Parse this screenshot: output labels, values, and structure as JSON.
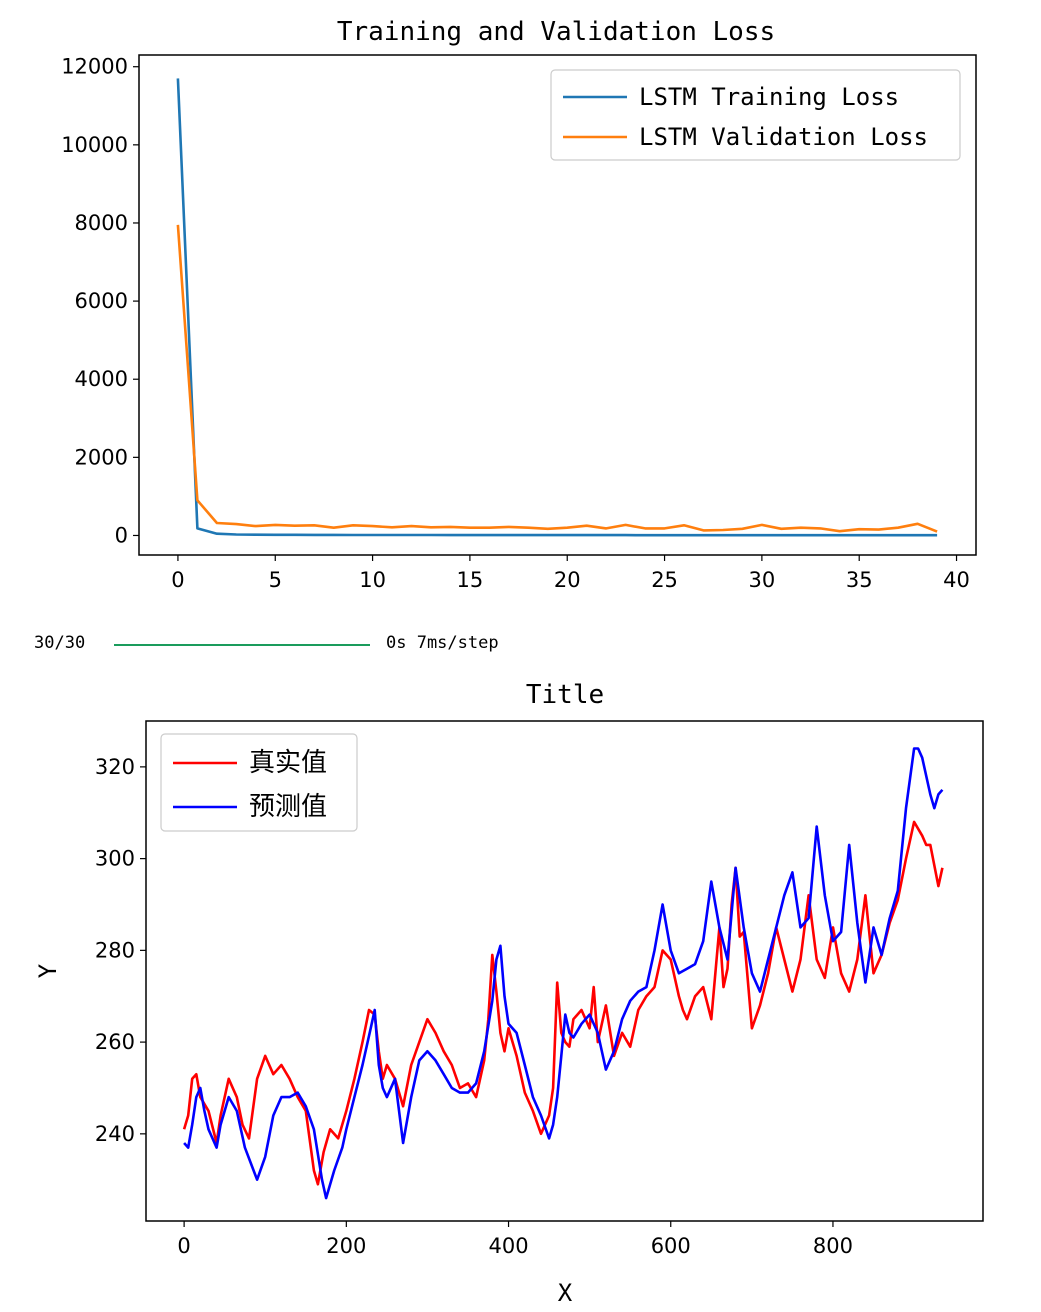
{
  "progress": {
    "count": "30/30",
    "fraction": 1.0,
    "color": "#1a9c5c",
    "info": "0s 7ms/step"
  },
  "chart_data": [
    {
      "type": "line",
      "title": "Training and Validation Loss",
      "xlabel": "",
      "ylabel": "",
      "xlim": [
        -2,
        41
      ],
      "ylim": [
        -500,
        12300
      ],
      "x_ticks": [
        0,
        5,
        10,
        15,
        20,
        25,
        30,
        35,
        40
      ],
      "y_ticks": [
        0,
        2000,
        4000,
        6000,
        8000,
        10000,
        12000
      ],
      "legend_position": "top-right",
      "grid": false,
      "series": [
        {
          "name": "LSTM Training Loss",
          "color": "#1f77b4",
          "x": [
            0,
            1,
            2,
            3,
            4,
            5,
            6,
            7,
            8,
            9,
            10,
            11,
            12,
            13,
            14,
            15,
            16,
            17,
            18,
            19,
            20,
            21,
            22,
            23,
            24,
            25,
            26,
            27,
            28,
            29,
            30,
            31,
            32,
            33,
            34,
            35,
            36,
            37,
            38,
            39
          ],
          "values": [
            11700,
            180,
            45,
            25,
            20,
            18,
            16,
            15,
            14,
            13,
            12,
            12,
            11,
            11,
            10,
            10,
            10,
            10,
            9,
            9,
            9,
            9,
            9,
            9,
            8,
            8,
            8,
            8,
            8,
            8,
            8,
            8,
            8,
            8,
            8,
            8,
            8,
            8,
            8,
            8
          ]
        },
        {
          "name": "LSTM Validation Loss",
          "color": "#ff7f0e",
          "x": [
            0,
            1,
            2,
            3,
            4,
            5,
            6,
            7,
            8,
            9,
            10,
            11,
            12,
            13,
            14,
            15,
            16,
            17,
            18,
            19,
            20,
            21,
            22,
            23,
            24,
            25,
            26,
            27,
            28,
            29,
            30,
            31,
            32,
            33,
            34,
            35,
            36,
            37,
            38,
            39
          ],
          "values": [
            7950,
            900,
            320,
            290,
            240,
            270,
            250,
            260,
            200,
            260,
            240,
            210,
            240,
            210,
            220,
            200,
            200,
            220,
            200,
            170,
            200,
            250,
            180,
            270,
            180,
            180,
            260,
            130,
            140,
            170,
            270,
            170,
            200,
            180,
            110,
            160,
            150,
            200,
            300,
            100
          ]
        }
      ]
    },
    {
      "type": "line",
      "title": "Title",
      "xlabel": "X",
      "ylabel": "Y",
      "xlim": [
        -47,
        985
      ],
      "ylim": [
        221,
        330
      ],
      "x_ticks": [
        0,
        200,
        400,
        600,
        800
      ],
      "y_ticks": [
        240,
        260,
        280,
        300,
        320
      ],
      "legend_position": "top-left",
      "grid": false,
      "series": [
        {
          "name": "真实值",
          "color": "#ff0000",
          "x": [
            0,
            5,
            10,
            15,
            20,
            30,
            40,
            45,
            55,
            65,
            72,
            80,
            90,
            100,
            110,
            120,
            130,
            140,
            150,
            160,
            165,
            172,
            180,
            190,
            200,
            210,
            220,
            228,
            235,
            240,
            245,
            250,
            260,
            270,
            280,
            290,
            300,
            310,
            320,
            330,
            340,
            350,
            360,
            370,
            375,
            380,
            385,
            390,
            395,
            400,
            410,
            420,
            430,
            440,
            450,
            455,
            460,
            465,
            470,
            475,
            480,
            490,
            500,
            505,
            510,
            520,
            530,
            540,
            550,
            560,
            570,
            580,
            590,
            600,
            610,
            615,
            620,
            630,
            640,
            650,
            660,
            665,
            670,
            675,
            680,
            685,
            690,
            700,
            710,
            720,
            730,
            740,
            750,
            760,
            770,
            780,
            790,
            800,
            810,
            820,
            830,
            840,
            850,
            860,
            870,
            880,
            890,
            900,
            910,
            915,
            920,
            930,
            935
          ],
          "values": [
            241,
            244,
            252,
            253,
            248,
            245,
            238,
            244,
            252,
            248,
            242,
            239,
            252,
            257,
            253,
            255,
            252,
            248,
            245,
            232,
            229,
            236,
            241,
            239,
            245,
            252,
            260,
            267,
            266,
            258,
            252,
            255,
            252,
            246,
            255,
            260,
            265,
            262,
            258,
            255,
            250,
            251,
            248,
            256,
            265,
            279,
            271,
            262,
            258,
            263,
            257,
            249,
            245,
            240,
            244,
            250,
            273,
            262,
            260,
            259,
            265,
            267,
            263,
            272,
            260,
            268,
            257,
            262,
            259,
            267,
            270,
            272,
            280,
            278,
            270,
            267,
            265,
            270,
            272,
            265,
            285,
            272,
            276,
            290,
            298,
            283,
            284,
            263,
            268,
            275,
            285,
            278,
            271,
            278,
            292,
            278,
            274,
            285,
            275,
            271,
            278,
            292,
            275,
            279,
            286,
            291,
            300,
            308,
            305,
            303,
            303,
            294,
            298
          ]
        },
        {
          "name": "预测值",
          "color": "#0000ff",
          "x": [
            0,
            5,
            10,
            15,
            20,
            25,
            30,
            35,
            40,
            45,
            55,
            65,
            75,
            90,
            100,
            110,
            120,
            130,
            140,
            150,
            160,
            170,
            175,
            185,
            195,
            200,
            210,
            220,
            230,
            235,
            240,
            245,
            250,
            260,
            270,
            280,
            290,
            300,
            310,
            320,
            330,
            340,
            350,
            360,
            370,
            380,
            385,
            390,
            395,
            400,
            410,
            420,
            430,
            440,
            450,
            455,
            460,
            465,
            470,
            475,
            480,
            490,
            500,
            510,
            520,
            530,
            540,
            550,
            560,
            570,
            580,
            590,
            600,
            610,
            620,
            630,
            640,
            650,
            660,
            670,
            680,
            690,
            700,
            710,
            720,
            730,
            740,
            750,
            760,
            770,
            780,
            790,
            800,
            810,
            820,
            830,
            840,
            850,
            860,
            870,
            880,
            890,
            900,
            905,
            910,
            920,
            925,
            930,
            935
          ],
          "values": [
            238,
            237,
            242,
            248,
            250,
            245,
            241,
            239,
            237,
            242,
            248,
            245,
            237,
            230,
            235,
            244,
            248,
            248,
            249,
            246,
            241,
            230,
            226,
            232,
            237,
            241,
            248,
            255,
            263,
            267,
            255,
            250,
            248,
            252,
            238,
            248,
            256,
            258,
            256,
            253,
            250,
            249,
            249,
            251,
            258,
            269,
            278,
            281,
            270,
            264,
            262,
            255,
            248,
            244,
            239,
            242,
            248,
            257,
            266,
            262,
            261,
            264,
            266,
            262,
            254,
            258,
            265,
            269,
            271,
            272,
            280,
            290,
            280,
            275,
            276,
            277,
            282,
            295,
            285,
            278,
            298,
            285,
            275,
            271,
            278,
            285,
            292,
            297,
            285,
            287,
            307,
            292,
            282,
            284,
            303,
            286,
            273,
            285,
            279,
            287,
            293,
            311,
            324,
            324,
            322,
            314,
            311,
            314,
            315
          ]
        }
      ]
    }
  ]
}
